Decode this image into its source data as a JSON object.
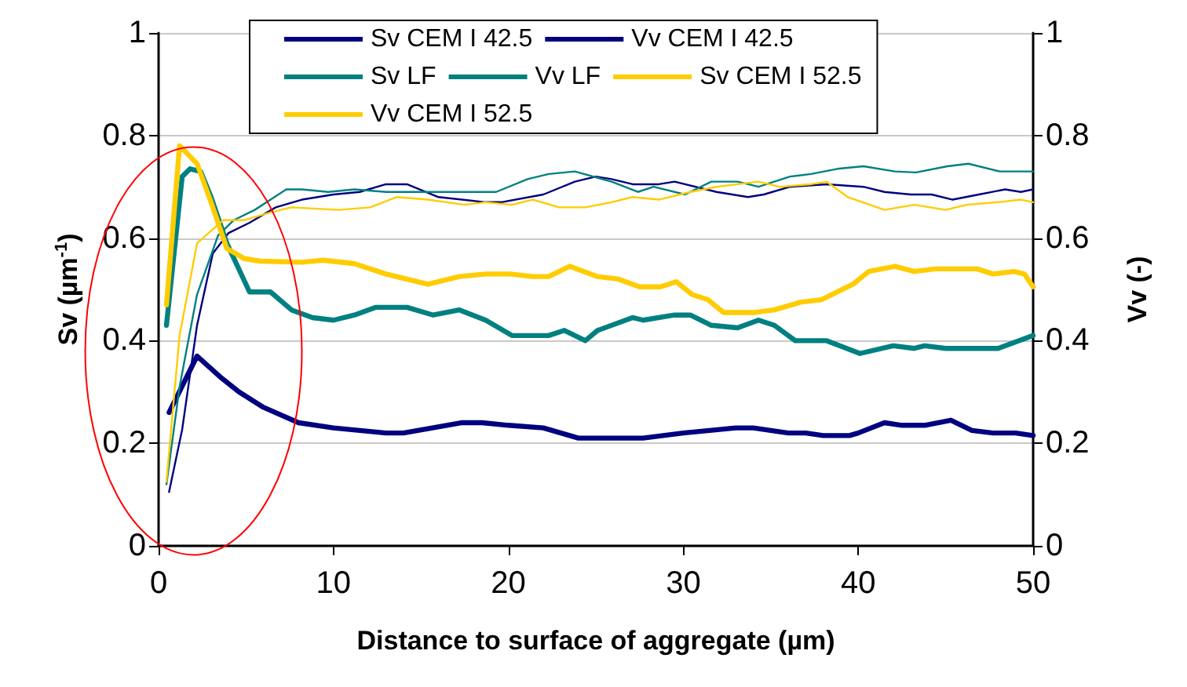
{
  "chart_data": {
    "type": "line",
    "xlabel": "Distance to surface of aggregate (µm)",
    "ylabel": "Sv (µm$^{-1}$)",
    "y2label": "Vv (-)",
    "xlim": [
      0,
      50
    ],
    "xticks": [
      0,
      10,
      20,
      30,
      40,
      50
    ],
    "ylim": [
      0,
      1
    ],
    "yticks": [
      0,
      0.2,
      0.4,
      0.6,
      0.8,
      1
    ],
    "y2lim": [
      0,
      1
    ],
    "y2ticks": [
      0,
      0.2,
      0.4,
      0.6,
      0.8,
      1
    ],
    "grid": "y",
    "legend": "top",
    "marker": "none",
    "line_style": "solid",
    "series": [
      {
        "name": "Sv CEM I 42.5",
        "color": "#000080",
        "x": [
          0.6,
          2.2,
          3.5,
          4.6,
          6,
          8,
          10,
          13,
          14,
          17.3,
          18.5,
          20,
          22,
          24,
          27.7,
          30,
          33,
          34,
          36,
          37,
          38,
          39.5,
          40,
          41.5,
          42.5,
          43.8,
          45.3,
          46.5,
          47.7,
          49,
          50
        ],
        "values": [
          0.26,
          0.37,
          0.33,
          0.3,
          0.27,
          0.24,
          0.23,
          0.22,
          0.22,
          0.24,
          0.24,
          0.235,
          0.23,
          0.21,
          0.21,
          0.22,
          0.23,
          0.23,
          0.22,
          0.22,
          0.215,
          0.215,
          0.22,
          0.24,
          0.235,
          0.235,
          0.245,
          0.225,
          0.22,
          0.22,
          0.215
        ]
      },
      {
        "name": "Vv CEM I 42.5",
        "color": "#000080",
        "axis": "y2",
        "x": [
          0.6,
          1.35,
          2.2,
          3.1,
          4,
          5.2,
          6.7,
          8.2,
          10,
          11.5,
          13,
          14.2,
          16,
          18.7,
          19.6,
          22,
          23.8,
          25,
          25.9,
          27.1,
          28.6,
          29.5,
          31.9,
          33.7,
          34.6,
          36.1,
          38.2,
          40.3,
          41.5,
          43,
          44.2,
          45.4,
          46.9,
          48.4,
          49.3,
          50
        ],
        "values": [
          0.105,
          0.227,
          0.43,
          0.57,
          0.61,
          0.63,
          0.66,
          0.675,
          0.685,
          0.69,
          0.705,
          0.705,
          0.68,
          0.67,
          0.67,
          0.685,
          0.71,
          0.72,
          0.715,
          0.705,
          0.705,
          0.71,
          0.69,
          0.68,
          0.685,
          0.7,
          0.705,
          0.7,
          0.69,
          0.685,
          0.685,
          0.675,
          0.685,
          0.695,
          0.69,
          0.695
        ]
      },
      {
        "name": "Sv LF",
        "color": "#008080",
        "x": [
          0.45,
          1.35,
          1.8,
          2.4,
          3,
          3.9,
          5.2,
          6.4,
          7.6,
          8.8,
          10,
          11.2,
          12.4,
          14.2,
          15.7,
          17.2,
          18.7,
          20.2,
          22.3,
          23.2,
          24.4,
          25.1,
          27.1,
          27.7,
          29.5,
          30.4,
          31.6,
          33.1,
          34.3,
          35.2,
          36.4,
          38.2,
          40.1,
          42,
          43.2,
          43.8,
          45,
          48,
          50
        ],
        "values": [
          0.43,
          0.72,
          0.735,
          0.73,
          0.68,
          0.59,
          0.495,
          0.495,
          0.46,
          0.445,
          0.44,
          0.45,
          0.465,
          0.465,
          0.45,
          0.46,
          0.44,
          0.41,
          0.41,
          0.42,
          0.4,
          0.42,
          0.445,
          0.44,
          0.45,
          0.45,
          0.43,
          0.425,
          0.44,
          0.43,
          0.4,
          0.4,
          0.375,
          0.39,
          0.385,
          0.39,
          0.385,
          0.385,
          0.41
        ]
      },
      {
        "name": "Vv LF",
        "color": "#008080",
        "axis": "y2",
        "x": [
          0.45,
          1.2,
          2.2,
          3.4,
          4.3,
          5.5,
          7.3,
          8.2,
          9.7,
          11.2,
          13,
          15.7,
          19.3,
          21.1,
          22.3,
          23.8,
          25.9,
          27.4,
          28.3,
          30.1,
          31.6,
          33.1,
          34.3,
          36.1,
          37.3,
          38.8,
          40.3,
          42.1,
          43.3,
          45.1,
          46.3,
          48.1,
          50
        ],
        "values": [
          0.12,
          0.31,
          0.49,
          0.605,
          0.635,
          0.655,
          0.695,
          0.695,
          0.69,
          0.695,
          0.69,
          0.69,
          0.69,
          0.715,
          0.725,
          0.73,
          0.71,
          0.69,
          0.7,
          0.685,
          0.71,
          0.71,
          0.7,
          0.72,
          0.725,
          0.735,
          0.74,
          0.73,
          0.728,
          0.74,
          0.745,
          0.73,
          0.73
        ]
      },
      {
        "name": "Sv CEM I 52.5",
        "color": "#ffcc00",
        "x": [
          0.45,
          1.2,
          2.2,
          3,
          3.9,
          4.9,
          5.8,
          8.2,
          9.4,
          11.2,
          13,
          15.4,
          17.2,
          18.7,
          20.1,
          21.4,
          22.3,
          23.5,
          25.1,
          26.3,
          27.5,
          28.7,
          29.6,
          30.5,
          31.4,
          32.3,
          34.1,
          35.2,
          36.7,
          37.9,
          39.7,
          40.6,
          42.1,
          43.2,
          44.4,
          46.8,
          47.7,
          48.9,
          49.5,
          50
        ],
        "values": [
          0.47,
          0.78,
          0.745,
          0.67,
          0.58,
          0.56,
          0.555,
          0.553,
          0.557,
          0.55,
          0.53,
          0.51,
          0.525,
          0.53,
          0.53,
          0.525,
          0.525,
          0.545,
          0.525,
          0.52,
          0.505,
          0.505,
          0.515,
          0.49,
          0.48,
          0.455,
          0.455,
          0.46,
          0.475,
          0.48,
          0.51,
          0.535,
          0.545,
          0.535,
          0.54,
          0.54,
          0.53,
          0.535,
          0.53,
          0.505
        ]
      },
      {
        "name": "Vv CEM I 52.5",
        "color": "#ffcc00",
        "axis": "y2",
        "x": [
          0.45,
          1.2,
          2.2,
          3.7,
          4.9,
          6.4,
          7.6,
          10.3,
          12.1,
          13.6,
          15.4,
          17.5,
          18.7,
          20.2,
          21.4,
          22.9,
          24.4,
          25.9,
          27.1,
          28.6,
          30.4,
          31.9,
          33.1,
          34.3,
          35.5,
          37.3,
          38.2,
          39.4,
          41.5,
          43.2,
          45,
          46.2,
          48,
          49.3,
          50
        ],
        "values": [
          0.125,
          0.41,
          0.59,
          0.635,
          0.635,
          0.65,
          0.66,
          0.655,
          0.66,
          0.68,
          0.675,
          0.665,
          0.67,
          0.665,
          0.675,
          0.66,
          0.66,
          0.67,
          0.68,
          0.675,
          0.69,
          0.7,
          0.705,
          0.71,
          0.7,
          0.705,
          0.71,
          0.68,
          0.655,
          0.665,
          0.655,
          0.665,
          0.67,
          0.675,
          0.67
        ]
      }
    ]
  }
}
